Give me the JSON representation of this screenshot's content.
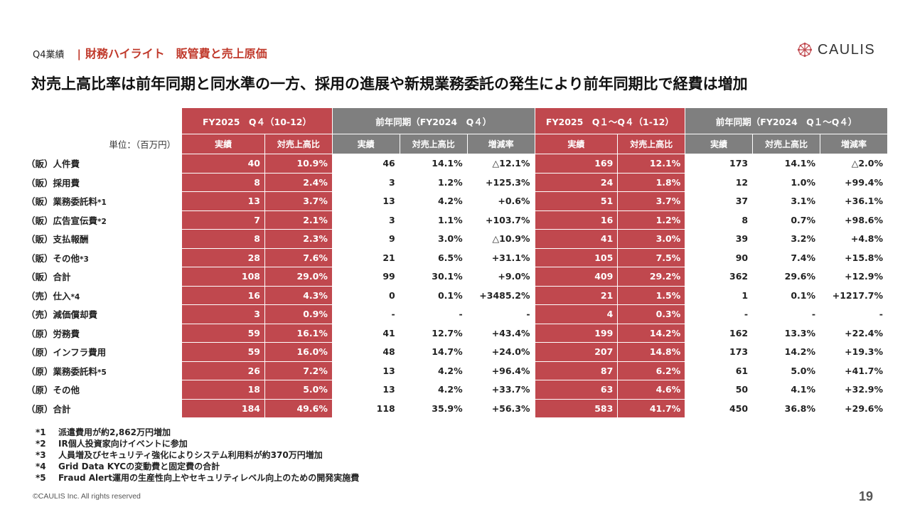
{
  "header": {
    "section_prefix": "Q4業績",
    "divider": "|",
    "section_title": "財務ハイライト　販管費と売上原価",
    "logo_text": "CAULIS"
  },
  "headline": "対売上高比率は前年同期と同水準の一方、採用の進展や新規業務委託の発生により前年同期比で経費は増加",
  "table": {
    "unit_label": "単位：（百万円）",
    "groups": [
      {
        "title": "FY2025　Q４（10-12）"
      },
      {
        "title": "前年同期（FY2024　Q４）"
      },
      {
        "title": "FY2025　Q１〜Q４（1-12）"
      },
      {
        "title": "前年同期（FY2024　Q１〜Q４）"
      }
    ],
    "subheaders": [
      "実績",
      "対売上高比",
      "実績",
      "対売上高比",
      "増減率",
      "実績",
      "対売上高比",
      "実績",
      "対売上高比",
      "増減率"
    ],
    "rows": [
      {
        "label": "（販）人件費",
        "note": "",
        "cells": [
          "40",
          "10.9%",
          "46",
          "14.1%",
          "△12.1%",
          "169",
          "12.1%",
          "173",
          "14.1%",
          "△2.0%"
        ]
      },
      {
        "label": "（販）採用費",
        "note": "",
        "cells": [
          "8",
          "2.4%",
          "3",
          "1.2%",
          "+125.3%",
          "24",
          "1.8%",
          "12",
          "1.0%",
          "+99.4%"
        ]
      },
      {
        "label": "（販）業務委託料",
        "note": "*1",
        "cells": [
          "13",
          "3.7%",
          "13",
          "4.2%",
          "+0.6%",
          "51",
          "3.7%",
          "37",
          "3.1%",
          "+36.1%"
        ]
      },
      {
        "label": "（販）広告宣伝費",
        "note": "*2",
        "cells": [
          "7",
          "2.1%",
          "3",
          "1.1%",
          "+103.7%",
          "16",
          "1.2%",
          "8",
          "0.7%",
          "+98.6%"
        ]
      },
      {
        "label": "（販）支払報酬",
        "note": "",
        "cells": [
          "8",
          "2.3%",
          "9",
          "3.0%",
          "△10.9%",
          "41",
          "3.0%",
          "39",
          "3.2%",
          "+4.8%"
        ]
      },
      {
        "label": "（販）その他",
        "note": "*3",
        "cells": [
          "28",
          "7.6%",
          "21",
          "6.5%",
          "+31.1%",
          "105",
          "7.5%",
          "90",
          "7.4%",
          "+15.8%"
        ]
      },
      {
        "label": "（販）合計",
        "note": "",
        "cells": [
          "108",
          "29.0%",
          "99",
          "30.1%",
          "+9.0%",
          "409",
          "29.2%",
          "362",
          "29.6%",
          "+12.9%"
        ]
      },
      {
        "label": "（売）仕入",
        "note": "*4",
        "cells": [
          "16",
          "4.3%",
          "0",
          "0.1%",
          "+3485.2%",
          "21",
          "1.5%",
          "1",
          "0.1%",
          "+1217.7%"
        ]
      },
      {
        "label": "（売）減価償却費",
        "note": "",
        "cells": [
          "3",
          "0.9%",
          "-",
          "-",
          "-",
          "4",
          "0.3%",
          "-",
          "-",
          "-"
        ]
      },
      {
        "label": "（原）労務費",
        "note": "",
        "cells": [
          "59",
          "16.1%",
          "41",
          "12.7%",
          "+43.4%",
          "199",
          "14.2%",
          "162",
          "13.3%",
          "+22.4%"
        ]
      },
      {
        "label": "（原）インフラ費用",
        "note": "",
        "cells": [
          "59",
          "16.0%",
          "48",
          "14.7%",
          "+24.0%",
          "207",
          "14.8%",
          "173",
          "14.2%",
          "+19.3%"
        ]
      },
      {
        "label": "（原）業務委託料",
        "note": "*5",
        "cells": [
          "26",
          "7.2%",
          "13",
          "4.2%",
          "+96.4%",
          "87",
          "6.2%",
          "61",
          "5.0%",
          "+41.7%"
        ]
      },
      {
        "label": "（原）その他",
        "note": "",
        "cells": [
          "18",
          "5.0%",
          "13",
          "4.2%",
          "+33.7%",
          "63",
          "4.6%",
          "50",
          "4.1%",
          "+32.9%"
        ]
      },
      {
        "label": "（原）合計",
        "note": "",
        "cells": [
          "184",
          "49.6%",
          "118",
          "35.9%",
          "+56.3%",
          "583",
          "41.7%",
          "450",
          "36.8%",
          "+29.6%"
        ]
      }
    ]
  },
  "footnotes": [
    {
      "key": "*1",
      "text": "派遣費用が約2,862万円増加"
    },
    {
      "key": "*2",
      "text": "IR個人投資家向けイベントに参加"
    },
    {
      "key": "*3",
      "text": "人員増及びセキュリティ強化によりシステム利用料が約370万円増加"
    },
    {
      "key": "*4",
      "text": "Grid Data KYCの変動費と固定費の合計"
    },
    {
      "key": "*5",
      "text": "Fraud Alert運用の生産性向上やセキュリティレベル向上のための開発実施費"
    }
  ],
  "footer": {
    "copyright": "©CAULIS Inc. All rights reserved",
    "page_number": "19"
  },
  "colors": {
    "accent_red": "#c0484e",
    "header_gray": "#7f7f7f"
  }
}
